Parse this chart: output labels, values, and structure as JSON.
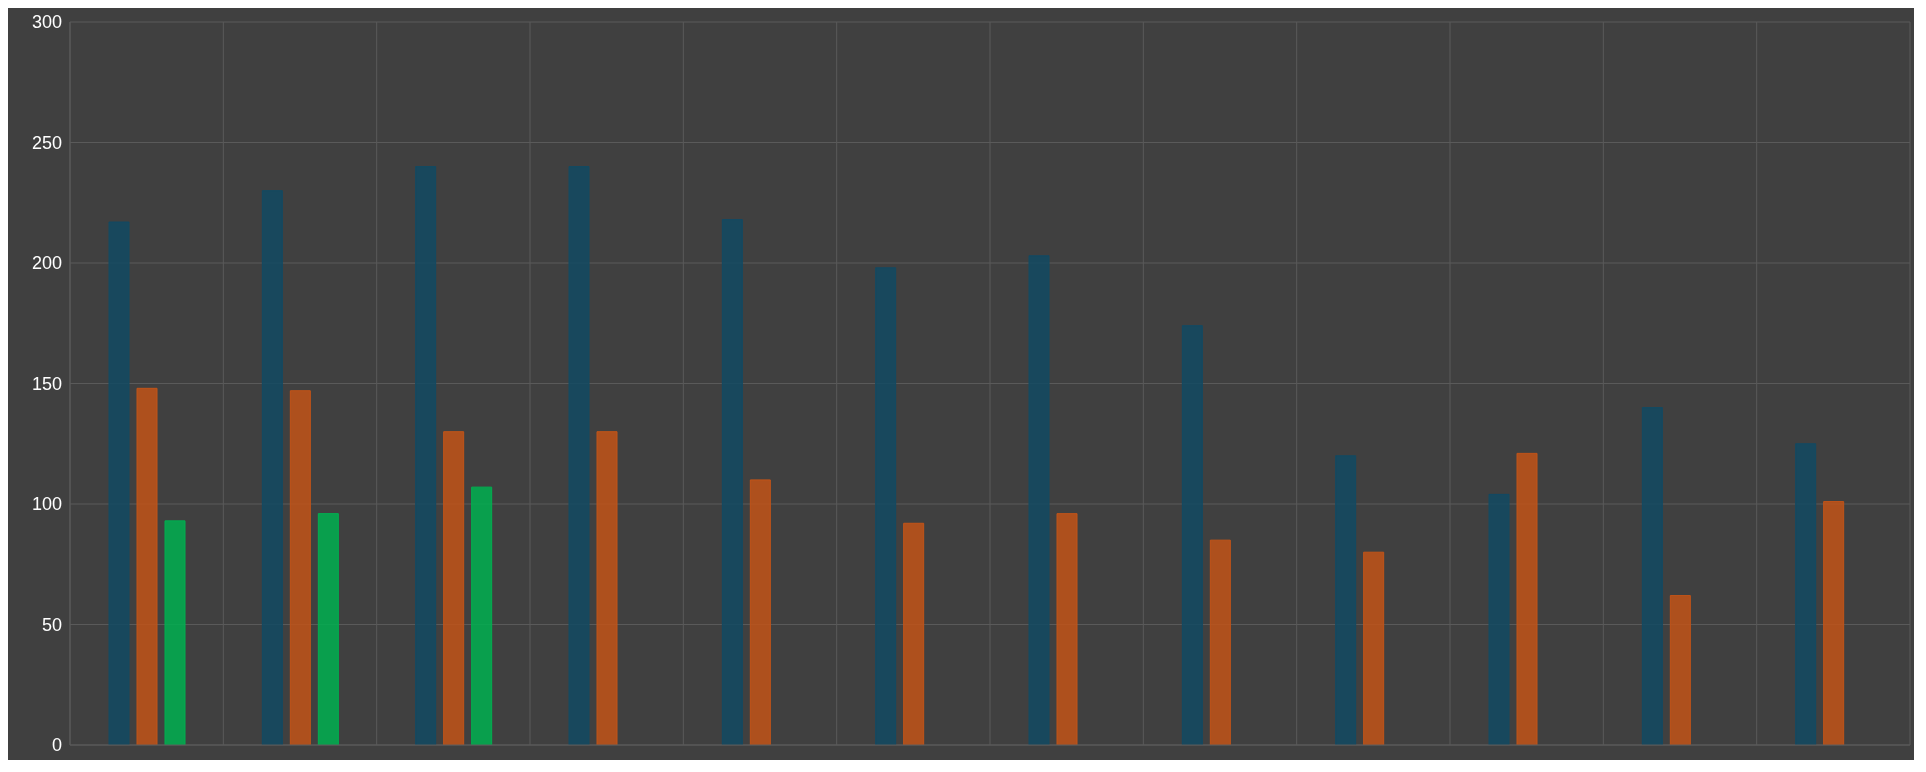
{
  "chart_data": {
    "type": "bar",
    "categories": [
      null,
      null,
      null,
      null,
      null,
      null,
      null,
      null,
      null,
      null,
      null,
      null
    ],
    "series": [
      {
        "color": "#124a63",
        "values": [
          217,
          230,
          240,
          240,
          218,
          198,
          203,
          174,
          120,
          104,
          140,
          125
        ]
      },
      {
        "color": "#c25418",
        "values": [
          148,
          147,
          130,
          130,
          110,
          92,
          96,
          85,
          80,
          121,
          62,
          101
        ]
      },
      {
        "color": "#00b050",
        "values": [
          93,
          96,
          107,
          null,
          null,
          null,
          null,
          null,
          null,
          null,
          null,
          null
        ]
      }
    ],
    "ylim": [
      0,
      300
    ],
    "yticks": [
      0,
      50,
      100,
      150,
      200,
      250,
      300
    ],
    "grid": true,
    "tick_labels": "y"
  }
}
